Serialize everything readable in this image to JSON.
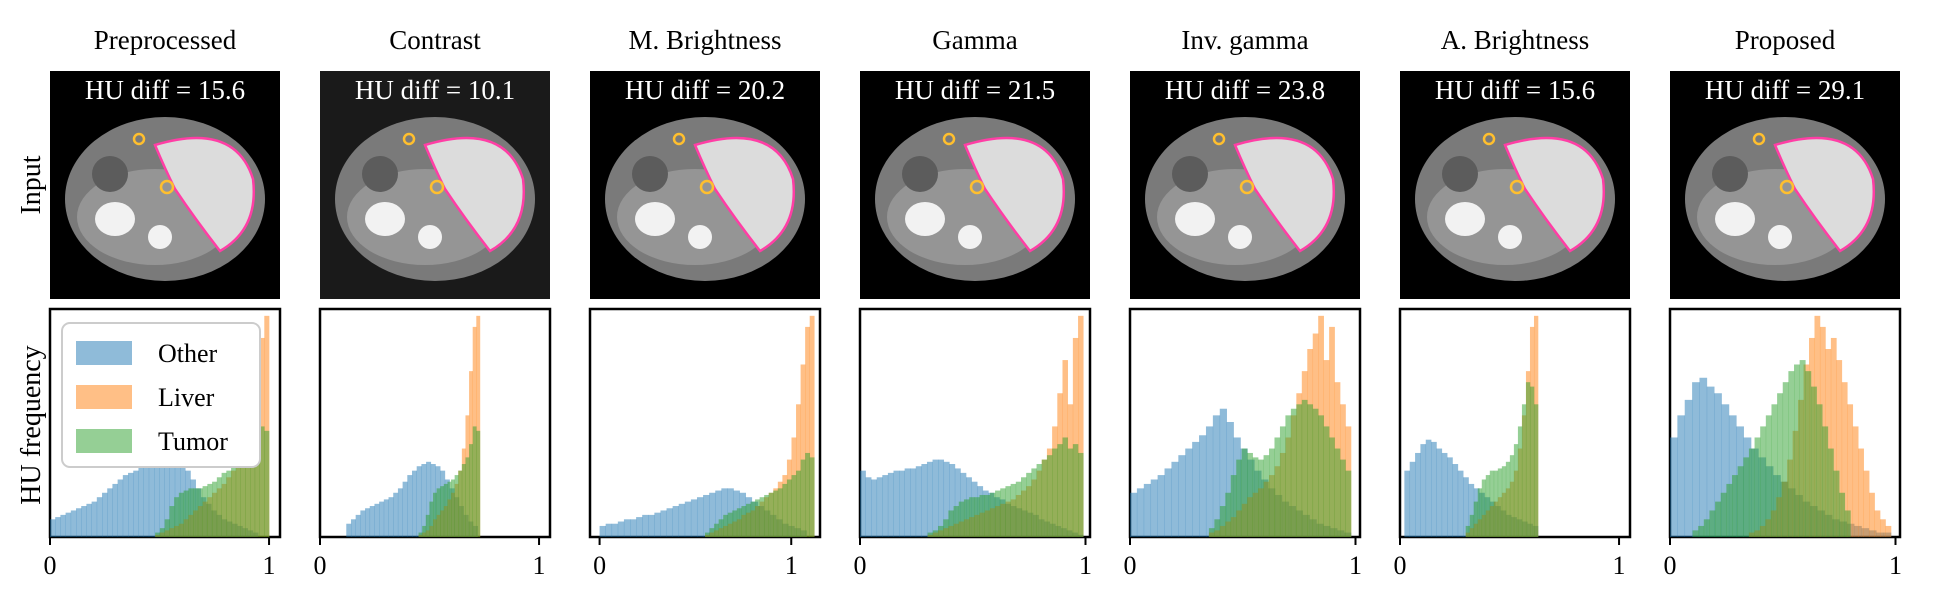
{
  "figure": {
    "row_labels": {
      "top": "Input",
      "bottom": "HU frequency"
    },
    "legend": [
      {
        "label": "Other",
        "color": "#1f77b4"
      },
      {
        "label": "Liver",
        "color": "#ff7f0e"
      },
      {
        "label": "Tumor",
        "color": "#2ca02c"
      }
    ],
    "image_colors": {
      "liver_outline": "#ff3ea5",
      "tumor_outline": "#ffbf2e",
      "background": "#000000"
    }
  },
  "chart_data": [
    {
      "type": "bar",
      "title": "Preprocessed",
      "annotation": "HU diff = 15.6",
      "bg": "#000000",
      "xlim": [
        0,
        1.05
      ],
      "xticks": [
        "0",
        "1"
      ],
      "xtick_values": [
        0,
        1
      ],
      "series": [
        {
          "name": "Other",
          "bins": [
            0,
            0.95
          ],
          "values": [
            0.08,
            0.09,
            0.1,
            0.11,
            0.12,
            0.13,
            0.14,
            0.15,
            0.16,
            0.18,
            0.2,
            0.22,
            0.24,
            0.26,
            0.28,
            0.29,
            0.3,
            0.32,
            0.33,
            0.34,
            0.35,
            0.36,
            0.37,
            0.37,
            0.36,
            0.34,
            0.3,
            0.26,
            0.22,
            0.18,
            0.15,
            0.12,
            0.1,
            0.08,
            0.07,
            0.06,
            0.05,
            0.04,
            0.03,
            0.02
          ]
        },
        {
          "name": "Liver",
          "bins": [
            0.48,
            1.0
          ],
          "values": [
            0.01,
            0.02,
            0.03,
            0.04,
            0.05,
            0.06,
            0.08,
            0.1,
            0.12,
            0.14,
            0.16,
            0.18,
            0.2,
            0.22,
            0.24,
            0.27,
            0.3,
            0.34,
            0.4,
            0.48,
            0.6,
            0.75,
            0.9,
            1.0
          ]
        },
        {
          "name": "Tumor",
          "bins": [
            0.48,
            1.0
          ],
          "values": [
            0.02,
            0.04,
            0.08,
            0.14,
            0.18,
            0.2,
            0.21,
            0.22,
            0.22,
            0.22,
            0.23,
            0.24,
            0.25,
            0.27,
            0.29,
            0.3,
            0.32,
            0.34,
            0.36,
            0.38,
            0.4,
            0.45,
            0.5,
            0.48
          ]
        }
      ]
    },
    {
      "type": "bar",
      "title": "Contrast",
      "annotation": "HU diff = 10.1",
      "bg": "#1a1a1a",
      "xlim": [
        0,
        1.05
      ],
      "xticks": [
        "0",
        "1"
      ],
      "xtick_values": [
        0,
        1
      ],
      "series": [
        {
          "name": "Other",
          "bins": [
            0.12,
            0.72
          ],
          "values": [
            0.06,
            0.08,
            0.1,
            0.12,
            0.13,
            0.14,
            0.15,
            0.16,
            0.17,
            0.18,
            0.2,
            0.22,
            0.25,
            0.28,
            0.3,
            0.32,
            0.33,
            0.34,
            0.33,
            0.32,
            0.3,
            0.26,
            0.22,
            0.18,
            0.14,
            0.1,
            0.07,
            0.05
          ]
        },
        {
          "name": "Liver",
          "bins": [
            0.45,
            0.73
          ],
          "values": [
            0.01,
            0.02,
            0.03,
            0.05,
            0.08,
            0.1,
            0.12,
            0.14,
            0.17,
            0.2,
            0.24,
            0.3,
            0.4,
            0.55,
            0.75,
            0.95,
            1.0
          ]
        },
        {
          "name": "Tumor",
          "bins": [
            0.45,
            0.73
          ],
          "values": [
            0.02,
            0.05,
            0.1,
            0.16,
            0.2,
            0.22,
            0.23,
            0.24,
            0.25,
            0.26,
            0.28,
            0.3,
            0.33,
            0.36,
            0.42,
            0.5,
            0.48
          ]
        }
      ]
    },
    {
      "type": "bar",
      "title": "M. Brightness",
      "annotation": "HU diff = 20.2",
      "bg": "#000000",
      "xlim": [
        -0.05,
        1.15
      ],
      "xticks": [
        "0",
        "1"
      ],
      "xtick_values": [
        0,
        1
      ],
      "series": [
        {
          "name": "Other",
          "bins": [
            0,
            1.08
          ],
          "values": [
            0.05,
            0.06,
            0.06,
            0.07,
            0.08,
            0.08,
            0.09,
            0.1,
            0.1,
            0.11,
            0.12,
            0.13,
            0.14,
            0.15,
            0.16,
            0.17,
            0.18,
            0.19,
            0.2,
            0.21,
            0.22,
            0.22,
            0.21,
            0.2,
            0.18,
            0.16,
            0.14,
            0.12,
            0.1,
            0.08,
            0.06,
            0.05,
            0.04,
            0.03
          ]
        },
        {
          "name": "Liver",
          "bins": [
            0.55,
            1.12
          ],
          "values": [
            0.01,
            0.02,
            0.03,
            0.04,
            0.05,
            0.06,
            0.07,
            0.08,
            0.1,
            0.11,
            0.12,
            0.14,
            0.16,
            0.18,
            0.2,
            0.22,
            0.25,
            0.28,
            0.35,
            0.45,
            0.6,
            0.78,
            0.95,
            1.0
          ]
        },
        {
          "name": "Tumor",
          "bins": [
            0.55,
            1.12
          ],
          "values": [
            0.02,
            0.04,
            0.06,
            0.08,
            0.1,
            0.11,
            0.12,
            0.13,
            0.14,
            0.15,
            0.16,
            0.17,
            0.18,
            0.19,
            0.2,
            0.21,
            0.22,
            0.24,
            0.26,
            0.28,
            0.3,
            0.35,
            0.38,
            0.36
          ]
        }
      ]
    },
    {
      "type": "bar",
      "title": "Gamma",
      "annotation": "HU diff = 21.5",
      "bg": "#000000",
      "xlim": [
        0,
        1.02
      ],
      "xticks": [
        "0",
        "1"
      ],
      "xtick_values": [
        0,
        1
      ],
      "series": [
        {
          "name": "Other",
          "bins": [
            0,
            0.99
          ],
          "values": [
            0.3,
            0.27,
            0.26,
            0.27,
            0.28,
            0.29,
            0.3,
            0.3,
            0.31,
            0.31,
            0.32,
            0.33,
            0.34,
            0.35,
            0.35,
            0.34,
            0.33,
            0.31,
            0.29,
            0.27,
            0.25,
            0.23,
            0.21,
            0.2,
            0.18,
            0.17,
            0.15,
            0.14,
            0.13,
            0.12,
            0.11,
            0.1,
            0.08,
            0.07,
            0.06,
            0.05,
            0.04,
            0.03,
            0.02,
            0.01
          ]
        },
        {
          "name": "Liver",
          "bins": [
            0.3,
            0.99
          ],
          "values": [
            0.01,
            0.02,
            0.03,
            0.04,
            0.05,
            0.06,
            0.07,
            0.08,
            0.09,
            0.1,
            0.11,
            0.12,
            0.13,
            0.14,
            0.15,
            0.16,
            0.17,
            0.19,
            0.21,
            0.23,
            0.26,
            0.3,
            0.35,
            0.4,
            0.5,
            0.65,
            0.8,
            0.6,
            0.9,
            1.0
          ]
        },
        {
          "name": "Tumor",
          "bins": [
            0.3,
            0.99
          ],
          "values": [
            0.02,
            0.03,
            0.05,
            0.08,
            0.12,
            0.14,
            0.16,
            0.17,
            0.18,
            0.18,
            0.19,
            0.19,
            0.2,
            0.21,
            0.22,
            0.23,
            0.24,
            0.25,
            0.27,
            0.29,
            0.31,
            0.33,
            0.35,
            0.37,
            0.4,
            0.42,
            0.45,
            0.4,
            0.42,
            0.38
          ]
        }
      ]
    },
    {
      "type": "bar",
      "title": "Inv. gamma",
      "annotation": "HU diff = 23.8",
      "bg": "#000000",
      "xlim": [
        0,
        1.02
      ],
      "xticks": [
        "0",
        "1"
      ],
      "xtick_values": [
        0,
        1
      ],
      "series": [
        {
          "name": "Other",
          "bins": [
            0,
            0.98
          ],
          "values": [
            0.2,
            0.22,
            0.24,
            0.26,
            0.28,
            0.31,
            0.34,
            0.37,
            0.4,
            0.43,
            0.46,
            0.5,
            0.55,
            0.58,
            0.52,
            0.45,
            0.4,
            0.35,
            0.3,
            0.26,
            0.22,
            0.19,
            0.16,
            0.14,
            0.12,
            0.1,
            0.08,
            0.06,
            0.05,
            0.04,
            0.03,
            0.02
          ]
        },
        {
          "name": "Liver",
          "bins": [
            0.35,
            0.98
          ],
          "values": [
            0.02,
            0.03,
            0.05,
            0.07,
            0.09,
            0.12,
            0.15,
            0.18,
            0.2,
            0.22,
            0.25,
            0.28,
            0.32,
            0.38,
            0.45,
            0.55,
            0.65,
            0.75,
            0.85,
            0.92,
            1.0,
            0.8,
            0.95,
            0.7,
            0.6,
            0.5
          ]
        },
        {
          "name": "Tumor",
          "bins": [
            0.35,
            0.98
          ],
          "values": [
            0.04,
            0.08,
            0.14,
            0.2,
            0.28,
            0.35,
            0.4,
            0.38,
            0.36,
            0.35,
            0.37,
            0.4,
            0.45,
            0.5,
            0.55,
            0.58,
            0.6,
            0.62,
            0.6,
            0.58,
            0.55,
            0.5,
            0.45,
            0.4,
            0.35,
            0.3
          ]
        }
      ]
    },
    {
      "type": "bar",
      "title": "A. Brightness",
      "annotation": "HU diff = 15.6",
      "bg": "#000000",
      "xlim": [
        0,
        1.05
      ],
      "xticks": [
        "0",
        "1"
      ],
      "xtick_values": [
        0,
        1
      ],
      "series": [
        {
          "name": "Other",
          "bins": [
            0.02,
            0.63
          ],
          "values": [
            0.3,
            0.34,
            0.38,
            0.42,
            0.44,
            0.43,
            0.4,
            0.38,
            0.36,
            0.33,
            0.3,
            0.27,
            0.24,
            0.22,
            0.2,
            0.18,
            0.16,
            0.14,
            0.12,
            0.1,
            0.09,
            0.08,
            0.07,
            0.06,
            0.05
          ]
        },
        {
          "name": "Liver",
          "bins": [
            0.3,
            0.63
          ],
          "values": [
            0.02,
            0.04,
            0.06,
            0.08,
            0.1,
            0.12,
            0.14,
            0.16,
            0.18,
            0.2,
            0.22,
            0.25,
            0.3,
            0.4,
            0.55,
            0.75,
            0.95,
            1.0
          ]
        },
        {
          "name": "Tumor",
          "bins": [
            0.3,
            0.63
          ],
          "values": [
            0.05,
            0.1,
            0.16,
            0.22,
            0.26,
            0.28,
            0.3,
            0.3,
            0.31,
            0.32,
            0.34,
            0.37,
            0.42,
            0.5,
            0.6,
            0.7,
            0.68,
            0.6
          ]
        }
      ]
    },
    {
      "type": "bar",
      "title": "Proposed",
      "annotation": "HU diff = 29.1",
      "bg": "#000000",
      "xlim": [
        0,
        1.02
      ],
      "xticks": [
        "0",
        "1"
      ],
      "xtick_values": [
        0,
        1
      ],
      "series": [
        {
          "name": "Other",
          "bins": [
            0,
            0.98
          ],
          "values": [
            0.45,
            0.55,
            0.62,
            0.7,
            0.72,
            0.68,
            0.65,
            0.6,
            0.55,
            0.5,
            0.45,
            0.4,
            0.36,
            0.32,
            0.28,
            0.25,
            0.22,
            0.19,
            0.16,
            0.14,
            0.12,
            0.1,
            0.08,
            0.07,
            0.06,
            0.05,
            0.04,
            0.03,
            0.02,
            0.02
          ]
        },
        {
          "name": "Liver",
          "bins": [
            0.35,
            0.98
          ],
          "values": [
            0.02,
            0.03,
            0.05,
            0.08,
            0.12,
            0.18,
            0.25,
            0.35,
            0.48,
            0.62,
            0.78,
            0.9,
            1.0,
            0.95,
            0.85,
            0.9,
            0.8,
            0.7,
            0.6,
            0.5,
            0.4,
            0.3,
            0.2,
            0.12,
            0.08,
            0.05
          ]
        },
        {
          "name": "Tumor",
          "bins": [
            0.1,
            0.8
          ],
          "values": [
            0.03,
            0.05,
            0.08,
            0.12,
            0.16,
            0.2,
            0.24,
            0.28,
            0.32,
            0.36,
            0.4,
            0.45,
            0.5,
            0.55,
            0.6,
            0.65,
            0.7,
            0.75,
            0.78,
            0.8,
            0.75,
            0.68,
            0.6,
            0.5,
            0.4,
            0.3,
            0.2,
            0.12
          ]
        }
      ]
    }
  ]
}
